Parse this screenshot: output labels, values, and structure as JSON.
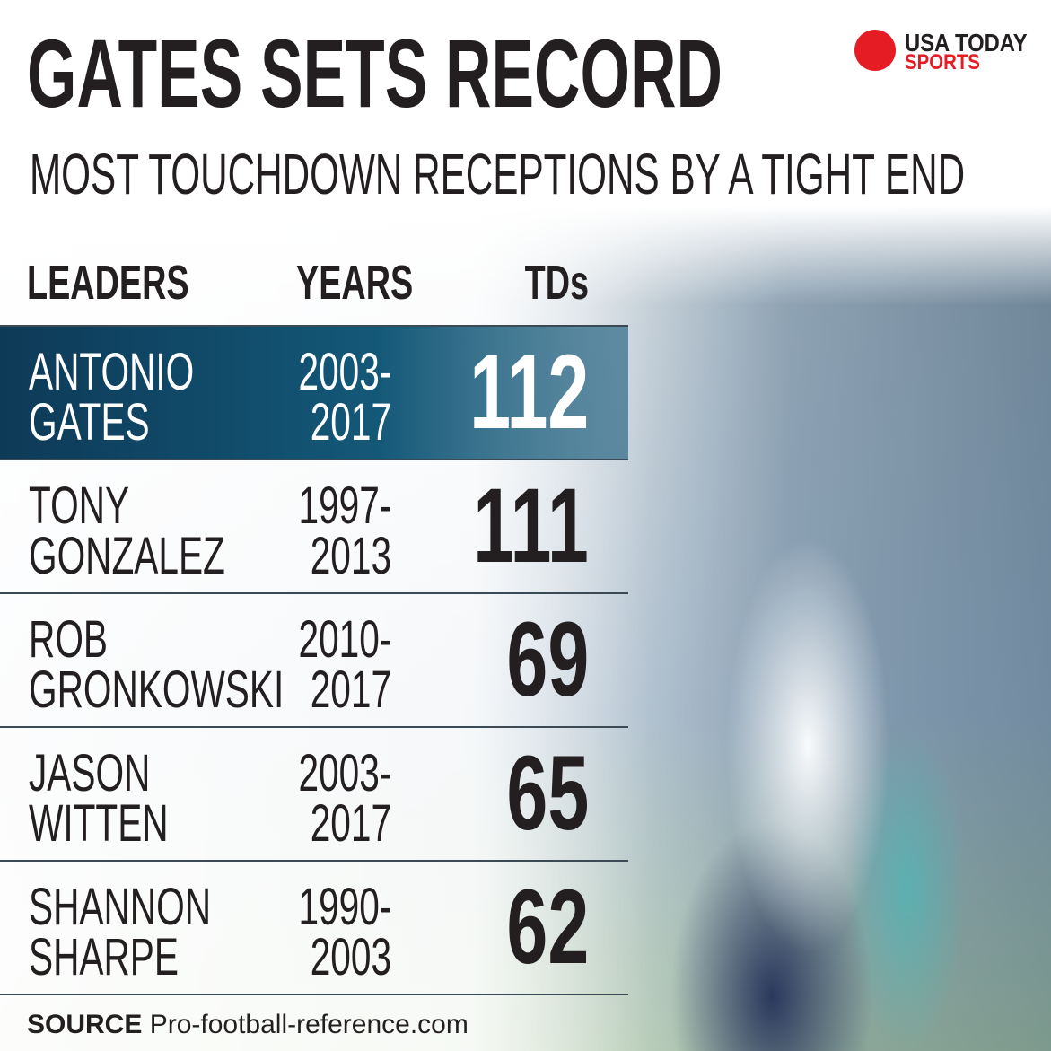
{
  "header": {
    "title": "GATES SETS RECORD",
    "subtitle": "MOST TOUCHDOWN RECEPTIONS BY A TIGHT END",
    "logo_line1": "USA TODAY",
    "logo_line2": "SPORTS"
  },
  "table": {
    "columns": [
      "LEADERS",
      "YEARS",
      "TDs"
    ],
    "rows": [
      {
        "name": [
          "ANTONIO",
          "GATES"
        ],
        "years": [
          "2003-",
          "2017"
        ],
        "tds": 112
      },
      {
        "name": [
          "TONY",
          "GONZALEZ"
        ],
        "years": [
          "1997-",
          "2013"
        ],
        "tds": 111
      },
      {
        "name": [
          "ROB",
          "GRONKOWSKI"
        ],
        "years": [
          "2010-",
          "2017"
        ],
        "tds": 69
      },
      {
        "name": [
          "JASON",
          "WITTEN"
        ],
        "years": [
          "2003-",
          "2017"
        ],
        "tds": 65
      },
      {
        "name": [
          "SHANNON",
          "SHARPE"
        ],
        "years": [
          "1990-",
          "2003"
        ],
        "tds": 62
      }
    ]
  },
  "footer": {
    "source_label": "SOURCE",
    "source": "Pro-football-reference.com"
  }
}
